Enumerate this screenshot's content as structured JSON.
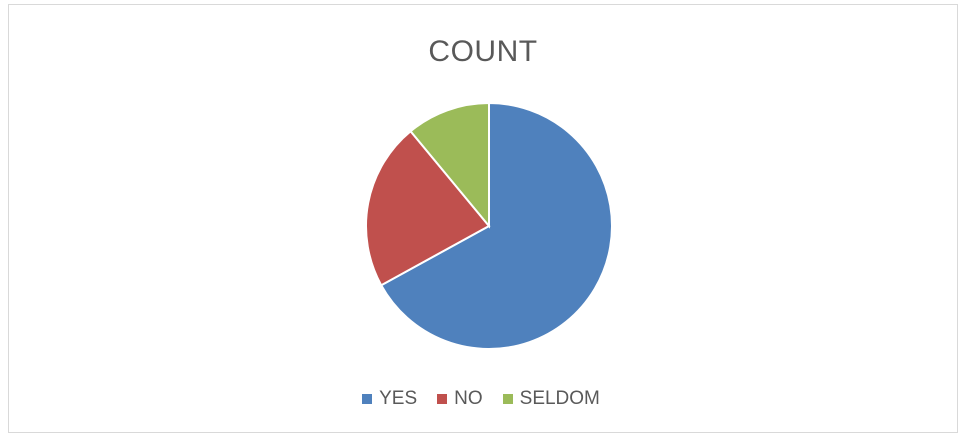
{
  "chart_data": {
    "type": "pie",
    "title": "COUNT",
    "categories": [
      "YES",
      "NO",
      "SELDOM"
    ],
    "values": [
      67,
      22,
      11
    ],
    "colors": [
      "#4f81bd",
      "#c0504d",
      "#9bbb59"
    ],
    "legend_position": "bottom"
  }
}
